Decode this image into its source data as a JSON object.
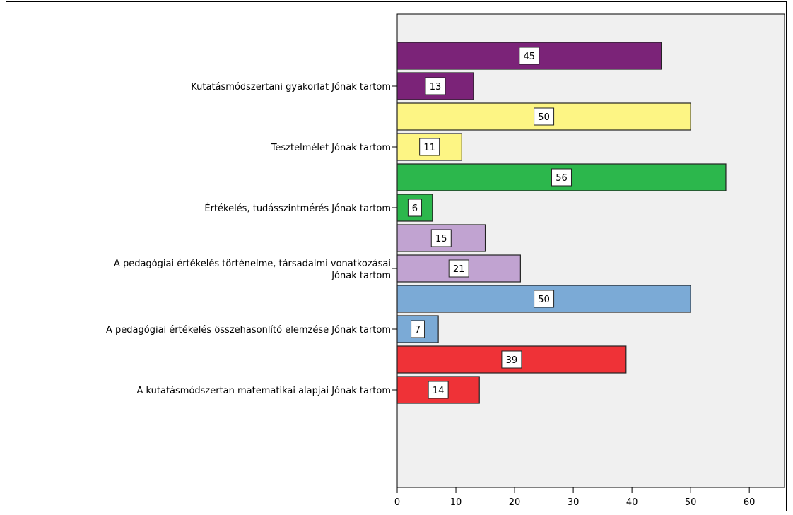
{
  "chart_data": {
    "type": "bar",
    "orientation": "horizontal",
    "title": "",
    "xlabel": "",
    "ylabel": "",
    "xlim": [
      0,
      66
    ],
    "x_ticks": [
      0,
      10,
      20,
      30,
      40,
      50,
      60
    ],
    "grid": false,
    "legend": "none",
    "groups": [
      {
        "label": "Kutatásmódszertani gyakorlat Jónak tartom",
        "color": "#7b2378",
        "bars": [
          {
            "value": 45,
            "label": "45"
          },
          {
            "value": 13,
            "label": "13"
          }
        ]
      },
      {
        "label": "Tesztelmélet Jónak tartom",
        "color": "#fdf584",
        "bars": [
          {
            "value": 50,
            "label": "50"
          },
          {
            "value": 11,
            "label": "11"
          }
        ]
      },
      {
        "label": "Értékelés, tudásszintmérés Jónak tartom",
        "color": "#2cb74c",
        "bars": [
          {
            "value": 56,
            "label": "56"
          },
          {
            "value": 6,
            "label": "6"
          }
        ]
      },
      {
        "label": "A pedagógiai értékelés történelme, társadalmi vonatkozásai Jónak tartom",
        "label_lines": [
          "A pedagógiai értékelés történelme, társadalmi vonatkozásai",
          "Jónak tartom"
        ],
        "color": "#c1a3d1",
        "bars": [
          {
            "value": 15,
            "label": "15"
          },
          {
            "value": 21,
            "label": "21"
          }
        ]
      },
      {
        "label": "A pedagógiai értékelés összehasonlító elemzése Jónak tartom",
        "color": "#7baad6",
        "bars": [
          {
            "value": 50,
            "label": "50"
          },
          {
            "value": 7,
            "label": "7"
          }
        ]
      },
      {
        "label": "A kutatásmódszertan matematikai alapjai Jónak tartom",
        "color": "#ef3237",
        "bars": [
          {
            "value": 39,
            "label": "39"
          },
          {
            "value": 14,
            "label": "14"
          }
        ]
      }
    ],
    "plot_background": "#f0f0f0",
    "bar_outline": "#222222"
  }
}
